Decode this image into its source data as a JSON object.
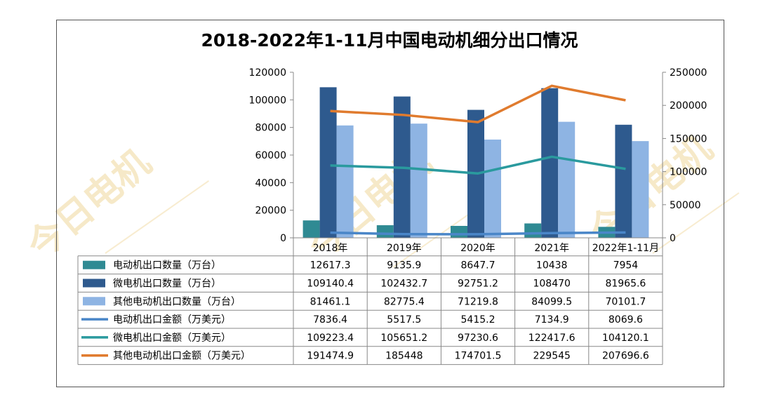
{
  "chart_data": {
    "type": "bar+line",
    "title": "2018-2022年1-11月中国电动机细分出口情况",
    "categories": [
      "2018年",
      "2019年",
      "2020年",
      "2021年",
      "2022年1-11月"
    ],
    "y_left": {
      "min": 0,
      "max": 120000,
      "ticks": [
        "0",
        "20000",
        "40000",
        "60000",
        "80000",
        "100000",
        "120000"
      ]
    },
    "y_right": {
      "min": 0,
      "max": 250000,
      "ticks": [
        "0",
        "50000",
        "100000",
        "150000",
        "200000",
        "250000"
      ]
    },
    "grid": false,
    "series": [
      {
        "name": "电动机出口数量（万台）",
        "type": "bar",
        "axis": "left",
        "color": "#2f8a93",
        "values": [
          12617.3,
          9135.9,
          8647.7,
          10438,
          7954
        ],
        "labels": [
          "12617.3",
          "9135.9",
          "8647.7",
          "10438",
          "7954"
        ]
      },
      {
        "name": "微电机出口数量（万台）",
        "type": "bar",
        "axis": "left",
        "color": "#2e5a8e",
        "values": [
          109140.4,
          102432.7,
          92751.2,
          108470,
          81965.6
        ],
        "labels": [
          "109140.4",
          "102432.7",
          "92751.2",
          "108470",
          "81965.6"
        ]
      },
      {
        "name": "其他电动机出口数量（万台）",
        "type": "bar",
        "axis": "left",
        "color": "#8eb4e3",
        "values": [
          81461.1,
          82775.4,
          71219.8,
          84099.5,
          70101.7
        ],
        "labels": [
          "81461.1",
          "82775.4",
          "71219.8",
          "84099.5",
          "70101.7"
        ]
      },
      {
        "name": "电动机出口金额（万美元）",
        "type": "line",
        "axis": "right",
        "color": "#4a86c8",
        "values": [
          7836.4,
          5517.5,
          5415.2,
          7134.9,
          8069.6
        ],
        "labels": [
          "7836.4",
          "5517.5",
          "5415.2",
          "7134.9",
          "8069.6"
        ]
      },
      {
        "name": "微电机出口金额（万美元）",
        "type": "line",
        "axis": "right",
        "color": "#2a9a9e",
        "values": [
          109223.4,
          105651.2,
          97230.6,
          122417.6,
          104120.1
        ],
        "labels": [
          "109223.4",
          "105651.2",
          "97230.6",
          "122417.6",
          "104120.1"
        ]
      },
      {
        "name": "其他电动机出口金额（万美元）",
        "type": "line",
        "axis": "right",
        "color": "#e07b2e",
        "values": [
          191474.9,
          185448,
          174701.5,
          229545,
          207696.6
        ],
        "labels": [
          "191474.9",
          "185448",
          "174701.5",
          "229545",
          "207696.6"
        ]
      }
    ]
  },
  "watermark": {
    "text": "今日电机"
  }
}
